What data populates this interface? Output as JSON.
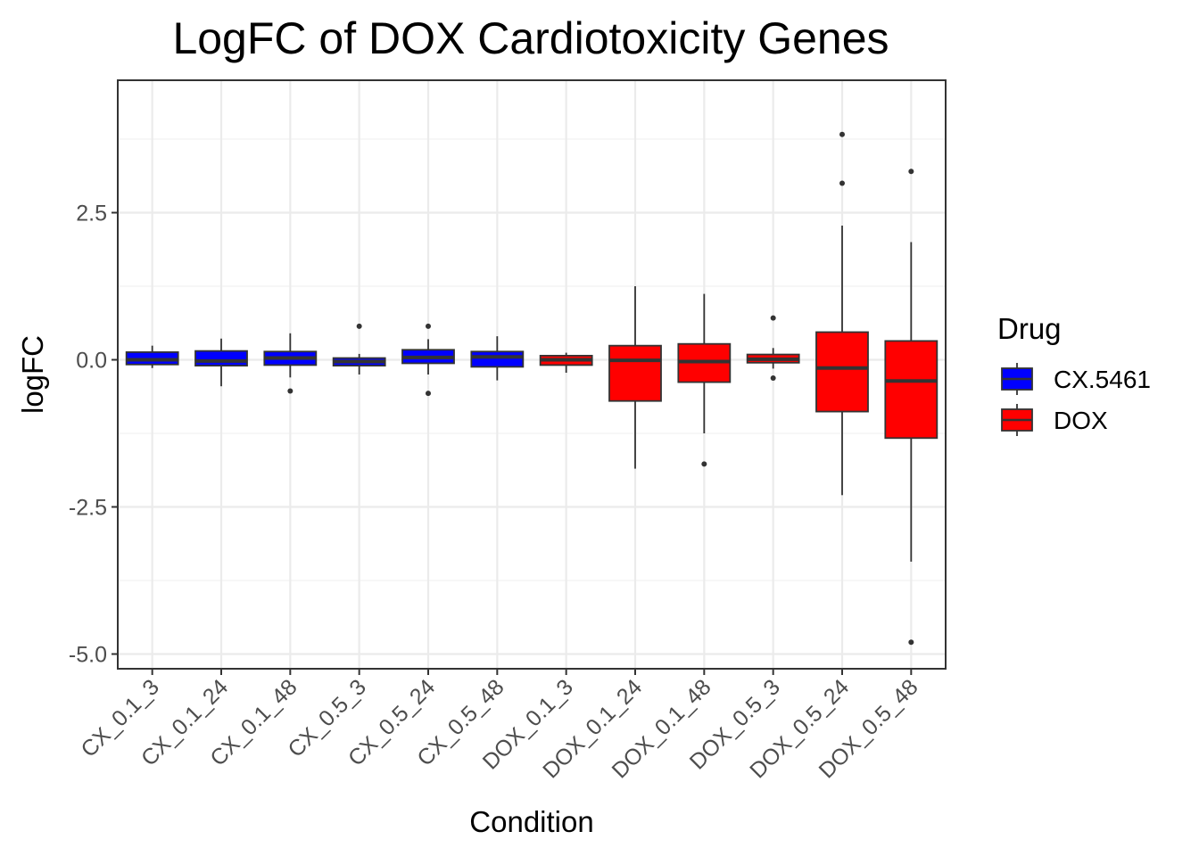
{
  "chart_data": {
    "type": "boxplot",
    "title": "LogFC of DOX Cardiotoxicity Genes",
    "xlabel": "Condition",
    "ylabel": "logFC",
    "ylim": [
      -5.25,
      4.75
    ],
    "yticks": [
      -5.0,
      -2.5,
      0.0,
      2.5
    ],
    "ytick_labels": [
      "-5.0",
      "-2.5",
      "0.0",
      "2.5"
    ],
    "grid": true,
    "legend": {
      "title": "Drug",
      "position": "right",
      "entries": [
        {
          "label": "CX.5461",
          "color": "#0000ff"
        },
        {
          "label": "DOX",
          "color": "#ff0000"
        }
      ]
    },
    "categories": [
      "CX_0.1_3",
      "CX_0.1_24",
      "CX_0.1_48",
      "CX_0.5_3",
      "CX_0.5_24",
      "CX_0.5_48",
      "DOX_0.1_3",
      "DOX_0.1_24",
      "DOX_0.1_48",
      "DOX_0.5_3",
      "DOX_0.5_24",
      "DOX_0.5_48"
    ],
    "boxes": [
      {
        "category": "CX_0.1_3",
        "drug": "CX.5461",
        "whisker_low": -0.14,
        "q1": -0.08,
        "median": 0.0,
        "q3": 0.13,
        "whisker_high": 0.24,
        "outliers": []
      },
      {
        "category": "CX_0.1_24",
        "drug": "CX.5461",
        "whisker_low": -0.45,
        "q1": -0.1,
        "median": -0.02,
        "q3": 0.15,
        "whisker_high": 0.36,
        "outliers": []
      },
      {
        "category": "CX_0.1_48",
        "drug": "CX.5461",
        "whisker_low": -0.3,
        "q1": -0.09,
        "median": 0.03,
        "q3": 0.14,
        "whisker_high": 0.45,
        "outliers": [
          -0.53
        ]
      },
      {
        "category": "CX_0.5_3",
        "drug": "CX.5461",
        "whisker_low": -0.25,
        "q1": -0.1,
        "median": -0.03,
        "q3": 0.03,
        "whisker_high": 0.1,
        "outliers": [
          0.57
        ]
      },
      {
        "category": "CX_0.5_24",
        "drug": "CX.5461",
        "whisker_low": -0.25,
        "q1": -0.06,
        "median": 0.04,
        "q3": 0.17,
        "whisker_high": 0.35,
        "outliers": [
          0.57,
          -0.57
        ]
      },
      {
        "category": "CX_0.5_48",
        "drug": "CX.5461",
        "whisker_low": -0.35,
        "q1": -0.12,
        "median": 0.05,
        "q3": 0.14,
        "whisker_high": 0.4,
        "outliers": []
      },
      {
        "category": "DOX_0.1_3",
        "drug": "DOX",
        "whisker_low": -0.22,
        "q1": -0.09,
        "median": 0.0,
        "q3": 0.07,
        "whisker_high": 0.12,
        "outliers": []
      },
      {
        "category": "DOX_0.1_24",
        "drug": "DOX",
        "whisker_low": -1.85,
        "q1": -0.7,
        "median": -0.01,
        "q3": 0.24,
        "whisker_high": 1.25,
        "outliers": []
      },
      {
        "category": "DOX_0.1_48",
        "drug": "DOX",
        "whisker_low": -1.25,
        "q1": -0.38,
        "median": -0.03,
        "q3": 0.27,
        "whisker_high": 1.12,
        "outliers": [
          -1.77
        ]
      },
      {
        "category": "DOX_0.5_3",
        "drug": "DOX",
        "whisker_low": -0.15,
        "q1": -0.05,
        "median": 0.01,
        "q3": 0.09,
        "whisker_high": 0.2,
        "outliers": [
          0.71,
          -0.31
        ]
      },
      {
        "category": "DOX_0.5_24",
        "drug": "DOX",
        "whisker_low": -2.3,
        "q1": -0.88,
        "median": -0.14,
        "q3": 0.47,
        "whisker_high": 2.28,
        "outliers": [
          3.0,
          3.83
        ]
      },
      {
        "category": "DOX_0.5_48",
        "drug": "DOX",
        "whisker_low": -3.43,
        "q1": -1.33,
        "median": -0.36,
        "q3": 0.32,
        "whisker_high": 2.0,
        "outliers": [
          3.2,
          -4.8
        ]
      }
    ]
  }
}
